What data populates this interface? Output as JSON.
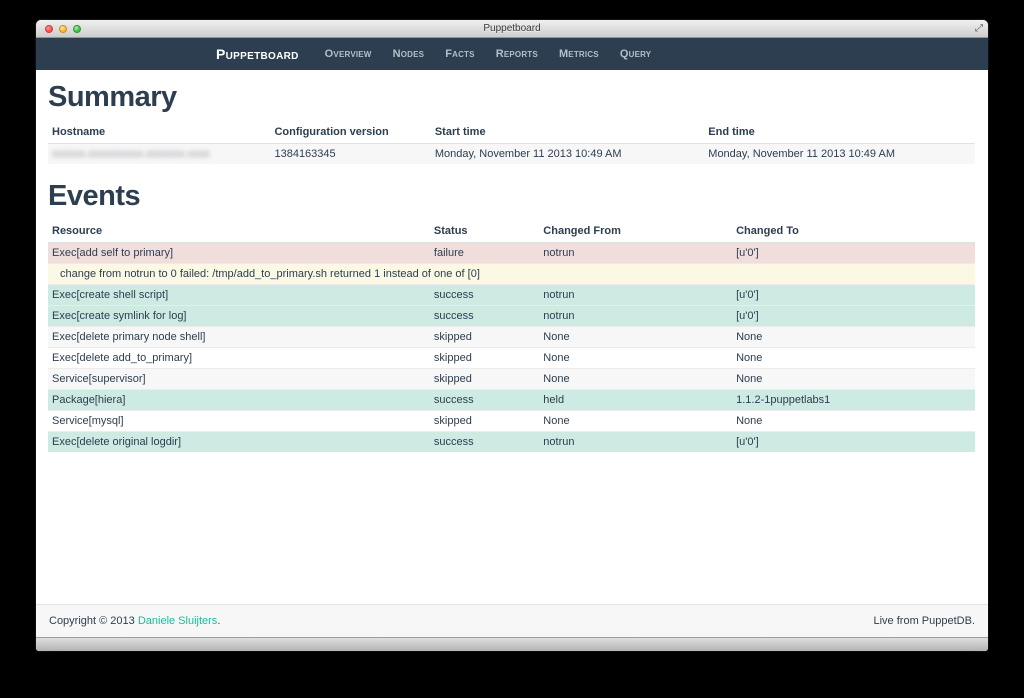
{
  "window": {
    "title": "Puppetboard",
    "resize_icon": "⤢"
  },
  "navbar": {
    "brand": "Puppetboard",
    "items": [
      {
        "label": "Overview"
      },
      {
        "label": "Nodes"
      },
      {
        "label": "Facts"
      },
      {
        "label": "Reports"
      },
      {
        "label": "Metrics"
      },
      {
        "label": "Query"
      }
    ]
  },
  "summary": {
    "heading": "Summary",
    "columns": [
      "Hostname",
      "Configuration version",
      "Start time",
      "End time"
    ],
    "row": {
      "hostname_redacted_placeholder": "xxxxxx.xxxxxxxxxx.xxxxxxx.xxxx",
      "configuration_version": "1384163345",
      "start_time": "Monday, November 11 2013 10:49 AM",
      "end_time": "Monday, November 11 2013 10:49 AM"
    }
  },
  "events": {
    "heading": "Events",
    "columns": [
      "Resource",
      "Status",
      "Changed From",
      "Changed To"
    ],
    "rows": [
      {
        "type": "event",
        "resource": "Exec[add self to primary]",
        "status": "failure",
        "changed_from": "notrun",
        "changed_to": "[u'0']",
        "row_class": "failure"
      },
      {
        "type": "message",
        "message": "change from notrun to 0 failed: /tmp/add_to_primary.sh returned 1 instead of one of [0]",
        "row_class": "warning"
      },
      {
        "type": "event",
        "resource": "Exec[create shell script]",
        "status": "success",
        "changed_from": "notrun",
        "changed_to": "[u'0']",
        "row_class": "success"
      },
      {
        "type": "event",
        "resource": "Exec[create symlink for log]",
        "status": "success",
        "changed_from": "notrun",
        "changed_to": "[u'0']",
        "row_class": "success"
      },
      {
        "type": "event",
        "resource": "Exec[delete primary node shell]",
        "status": "skipped",
        "changed_from": "None",
        "changed_to": "None",
        "row_class": "striped"
      },
      {
        "type": "event",
        "resource": "Exec[delete add_to_primary]",
        "status": "skipped",
        "changed_from": "None",
        "changed_to": "None",
        "row_class": ""
      },
      {
        "type": "event",
        "resource": "Service[supervisor]",
        "status": "skipped",
        "changed_from": "None",
        "changed_to": "None",
        "row_class": "striped"
      },
      {
        "type": "event",
        "resource": "Package[hiera]",
        "status": "success",
        "changed_from": "held",
        "changed_to": "1.1.2-1puppetlabs1",
        "row_class": "success"
      },
      {
        "type": "event",
        "resource": "Service[mysql]",
        "status": "skipped",
        "changed_from": "None",
        "changed_to": "None",
        "row_class": ""
      },
      {
        "type": "event",
        "resource": "Exec[delete original logdir]",
        "status": "success",
        "changed_from": "notrun",
        "changed_to": "[u'0']",
        "row_class": "success"
      }
    ]
  },
  "footer": {
    "copyright_prefix": "Copyright © 2013 ",
    "copyright_link": "Daniele Sluijters",
    "copyright_suffix": ".",
    "right_text": "Live from PuppetDB."
  },
  "colors": {
    "navbar_bg": "#2c3e50",
    "text": "#2c3e50",
    "failure_row": "#f2dddd",
    "warning_row": "#fbf9e4",
    "success_row": "#cdeae3",
    "striped_row": "#f7f7f7",
    "link_teal": "#18bc9c",
    "footer_bg": "#f7f7f7"
  }
}
